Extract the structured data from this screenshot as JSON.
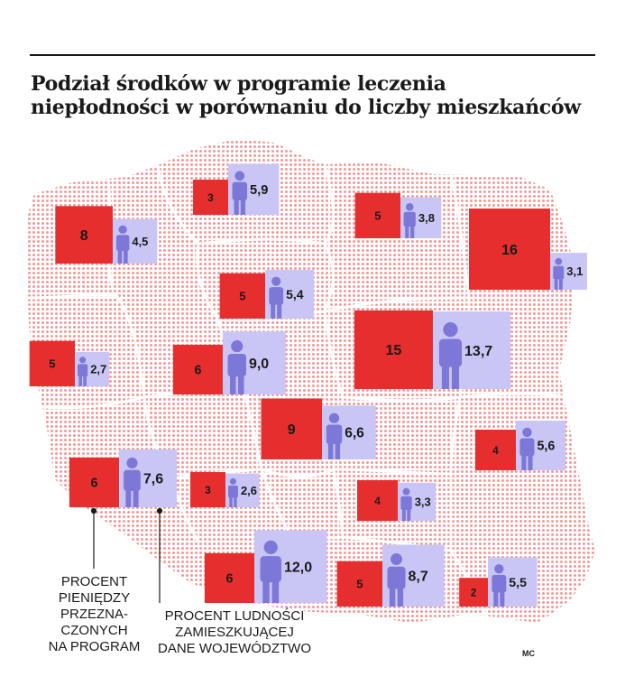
{
  "title_line1": "Podział środków w programie leczenia",
  "title_line2": "niepłodności w porównaniu do liczby mieszkańców",
  "legend": {
    "money": [
      "PROCENT",
      "PIENIĘDZY",
      "PRZEZNA-",
      "CZONYCH",
      "NA PROGRAM"
    ],
    "population": [
      "PROCENT LUDNOŚCI",
      "ZAMIESZKUJĄCEJ",
      "DANE WOJEWÓDZTWO"
    ]
  },
  "credit": "MC",
  "colors": {
    "money": "#e62e2e",
    "population": "#c9c6f5",
    "person": "#7d77d8",
    "map_dots": "#ef9a9a"
  },
  "chart_data": {
    "type": "table",
    "series": [
      {
        "name": "PROCENT PIENIĘDZY PRZEZNACZONYCH NA PROGRAM",
        "values": [
          8,
          3,
          5,
          16,
          5,
          5,
          6,
          15,
          9,
          4,
          6,
          3,
          4,
          6,
          5,
          2
        ]
      },
      {
        "name": "PROCENT LUDNOŚCI ZAMIESZKUJĄCEJ DANE WOJEWÓDZTWO",
        "values": [
          "4,5",
          "5,9",
          "3,8",
          "3,1",
          "5,4",
          "2,7",
          "9,0",
          "13,7",
          "6,6",
          "5,6",
          "7,6",
          "2,6",
          "3,3",
          "12,0",
          "8,7",
          "5,5"
        ]
      }
    ]
  }
}
